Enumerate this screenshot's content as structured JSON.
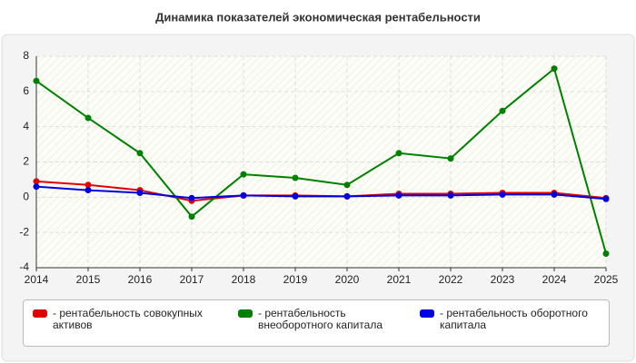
{
  "chart_data": {
    "type": "line",
    "title": "Динамика показателей экономическая рентабельности",
    "categories": [
      "2014",
      "2015",
      "2016",
      "2017",
      "2018",
      "2019",
      "2020",
      "2021",
      "2022",
      "2023",
      "2024",
      "2025"
    ],
    "series": [
      {
        "name": "- рентабельность совокупных активов",
        "color": "#e00000",
        "values": [
          0.9,
          0.7,
          0.4,
          -0.2,
          0.1,
          0.1,
          0.05,
          0.2,
          0.2,
          0.25,
          0.25,
          -0.05
        ]
      },
      {
        "name": "- рентабельность внеоборотного капитала",
        "color": "#008000",
        "values": [
          6.6,
          4.5,
          2.5,
          -1.1,
          1.3,
          1.1,
          0.7,
          2.5,
          2.2,
          4.9,
          7.3,
          -3.2
        ]
      },
      {
        "name": "- рентабельность оборотного капитала",
        "color": "#0000e0",
        "values": [
          0.6,
          0.4,
          0.25,
          -0.05,
          0.1,
          0.05,
          0.05,
          0.1,
          0.1,
          0.15,
          0.15,
          -0.1
        ]
      }
    ],
    "ylim": [
      -4,
      8
    ],
    "yticks": [
      -4,
      -2,
      0,
      2,
      4,
      6,
      8
    ],
    "grid": true
  }
}
